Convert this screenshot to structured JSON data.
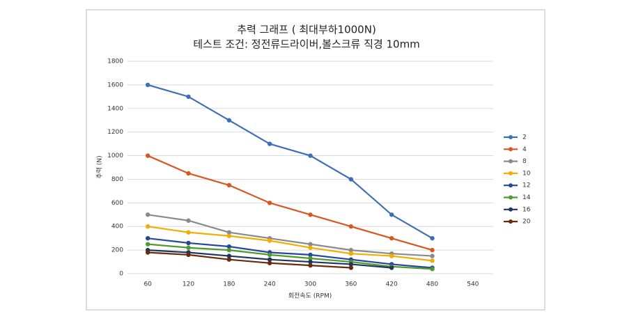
{
  "chart_data": {
    "type": "line",
    "title": "추력 그래프 ( 최대부하1000N)",
    "subtitle": "테스트 조건: 정전류드라이버,볼스크류 직경 10mm",
    "x_label": "회전속도 (RPM)",
    "y_label": "추력 (N)",
    "categories": [
      "60",
      "120",
      "180",
      "240",
      "300",
      "360",
      "420",
      "480",
      "540"
    ],
    "ylim": [
      0,
      1800
    ],
    "yticks": [
      0,
      200,
      400,
      600,
      800,
      1000,
      1200,
      1400,
      1600,
      1800
    ],
    "grid": true,
    "legend": "right",
    "series": [
      {
        "name": "2",
        "color": "#3c6fb6",
        "values": [
          1600,
          1500,
          1300,
          1100,
          1000,
          800,
          500,
          300,
          null
        ]
      },
      {
        "name": "4",
        "color": "#d9571e",
        "values": [
          1000,
          850,
          750,
          600,
          500,
          400,
          300,
          200,
          null
        ]
      },
      {
        "name": "8",
        "color": "#8a8a8a",
        "values": [
          500,
          450,
          350,
          300,
          250,
          200,
          170,
          150,
          null
        ]
      },
      {
        "name": "10",
        "color": "#f2ad00",
        "values": [
          400,
          350,
          320,
          280,
          220,
          170,
          150,
          110,
          null
        ]
      },
      {
        "name": "12",
        "color": "#27479b",
        "values": [
          300,
          260,
          230,
          180,
          160,
          120,
          80,
          50,
          null
        ]
      },
      {
        "name": "14",
        "color": "#4f9a2c",
        "values": [
          250,
          220,
          200,
          160,
          130,
          100,
          60,
          40,
          null
        ]
      },
      {
        "name": "16",
        "color": "#1f3760",
        "values": [
          200,
          180,
          150,
          120,
          100,
          80,
          50,
          null,
          null
        ]
      },
      {
        "name": "20",
        "color": "#6a2a0c",
        "values": [
          180,
          160,
          120,
          90,
          70,
          50,
          null,
          null,
          null
        ]
      }
    ]
  }
}
